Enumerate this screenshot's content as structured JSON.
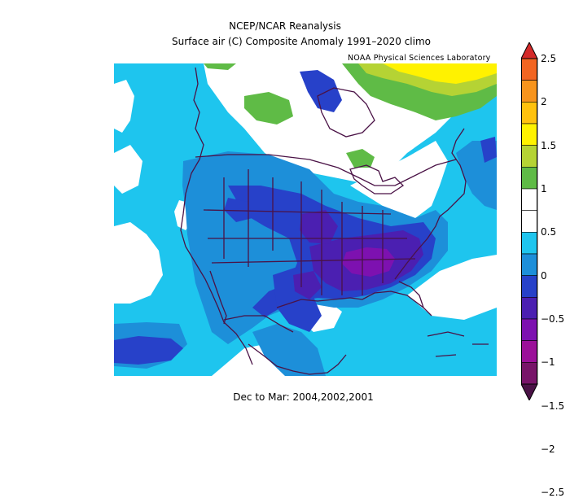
{
  "title_line1": "NCEP/NCAR Reanalysis",
  "title_line2": "Surface air (C) Composite Anomaly 1991–2020 climo",
  "credit": "NOAA Physical Sciences Laboratory",
  "subtitle": "Dec to Mar: 2004,2002,2001",
  "colorbar": {
    "labels": [
      "2.5",
      "2",
      "1.5",
      "1",
      "0.5",
      "0",
      "−0.5",
      "−1",
      "−1.5",
      "−2",
      "−2.5"
    ],
    "colors": [
      "#d42a2a",
      "#f26522",
      "#f7941d",
      "#ffc20e",
      "#fff200",
      "#b5d334",
      "#5fbb46",
      "#ffffff",
      "#ffffff",
      "#1ec5ee",
      "#1d8fd9",
      "#2741c9",
      "#4b1fb1",
      "#7d11b0",
      "#9b1099",
      "#781469",
      "#4a1246"
    ]
  },
  "map_colors": {
    "background": "#ffffff",
    "neg_05": "#1ec5ee",
    "neg_1": "#1d8fd9",
    "neg_15": "#2741c9",
    "neg_2": "#4b1fb1",
    "neg_25": "#7d11b0",
    "pos_05": "#5fbb46",
    "pos_1": "#b5d334",
    "pos_15": "#fff200",
    "coast": "#4a1246"
  }
}
